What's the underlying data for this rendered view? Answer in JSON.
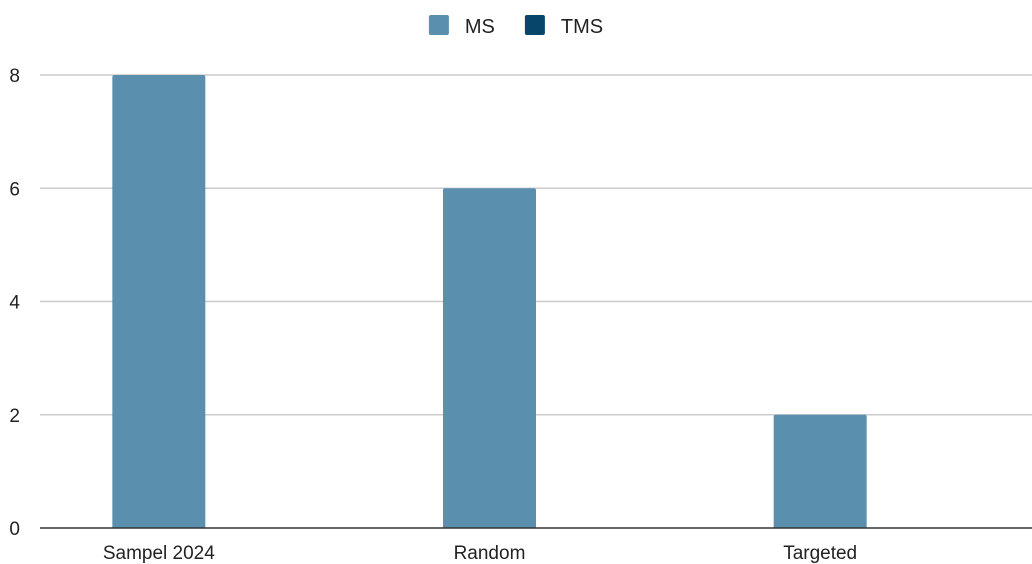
{
  "chart_data": {
    "type": "bar",
    "categories": [
      "Sampel 2024",
      "Random",
      "Targeted"
    ],
    "series": [
      {
        "name": "MS",
        "color": "#5a8fae",
        "values": [
          8,
          6,
          2
        ]
      },
      {
        "name": "TMS",
        "color": "#07466a",
        "values": [
          0,
          0,
          0
        ]
      }
    ],
    "yticks": [
      0,
      2,
      4,
      6,
      8
    ],
    "ylim": [
      0,
      8
    ],
    "grid": true,
    "legend_position": "top-center",
    "title": "",
    "xlabel": "",
    "ylabel": ""
  }
}
